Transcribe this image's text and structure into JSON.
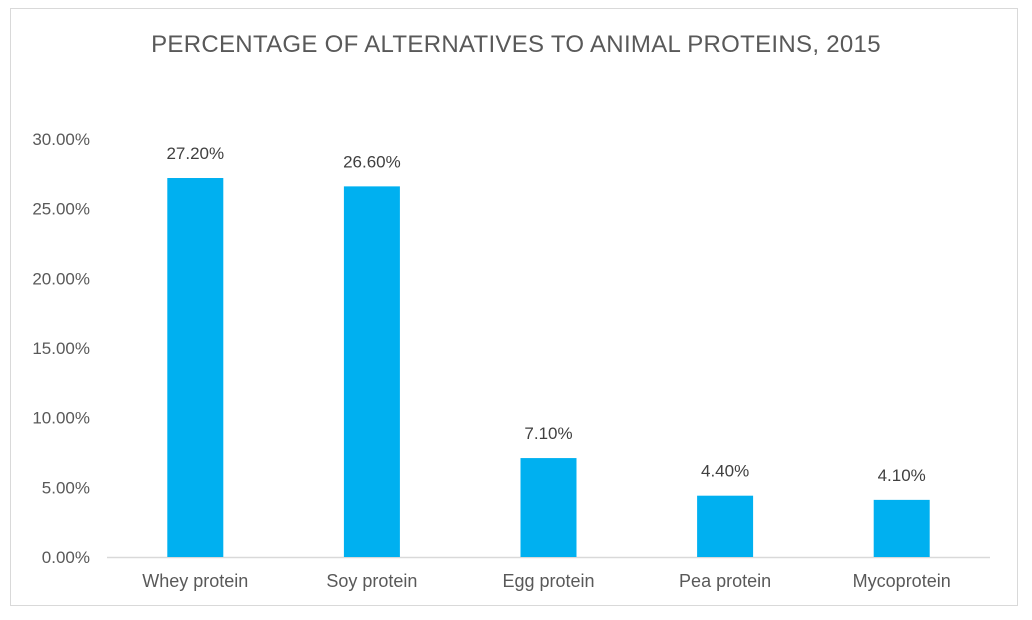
{
  "chart_data": {
    "type": "bar",
    "title": "PERCENTAGE OF ALTERNATIVES TO ANIMAL PROTEINS, 2015",
    "xlabel": "",
    "ylabel": "",
    "categories": [
      "Whey protein",
      "Soy protein",
      "Egg protein",
      "Pea protein",
      "Mycoprotein"
    ],
    "values": [
      27.2,
      26.6,
      7.1,
      4.4,
      4.1
    ],
    "data_labels": [
      "27.20%",
      "26.60%",
      "7.10%",
      "4.40%",
      "4.10%"
    ],
    "ylim": [
      0,
      30
    ],
    "yticks": [
      0,
      5,
      10,
      15,
      20,
      25,
      30
    ],
    "ytick_labels": [
      "0.00%",
      "5.00%",
      "10.00%",
      "15.00%",
      "20.00%",
      "25.00%",
      "30.00%"
    ],
    "grid": false,
    "legend": "none",
    "bar_color": "#00b0f0"
  }
}
